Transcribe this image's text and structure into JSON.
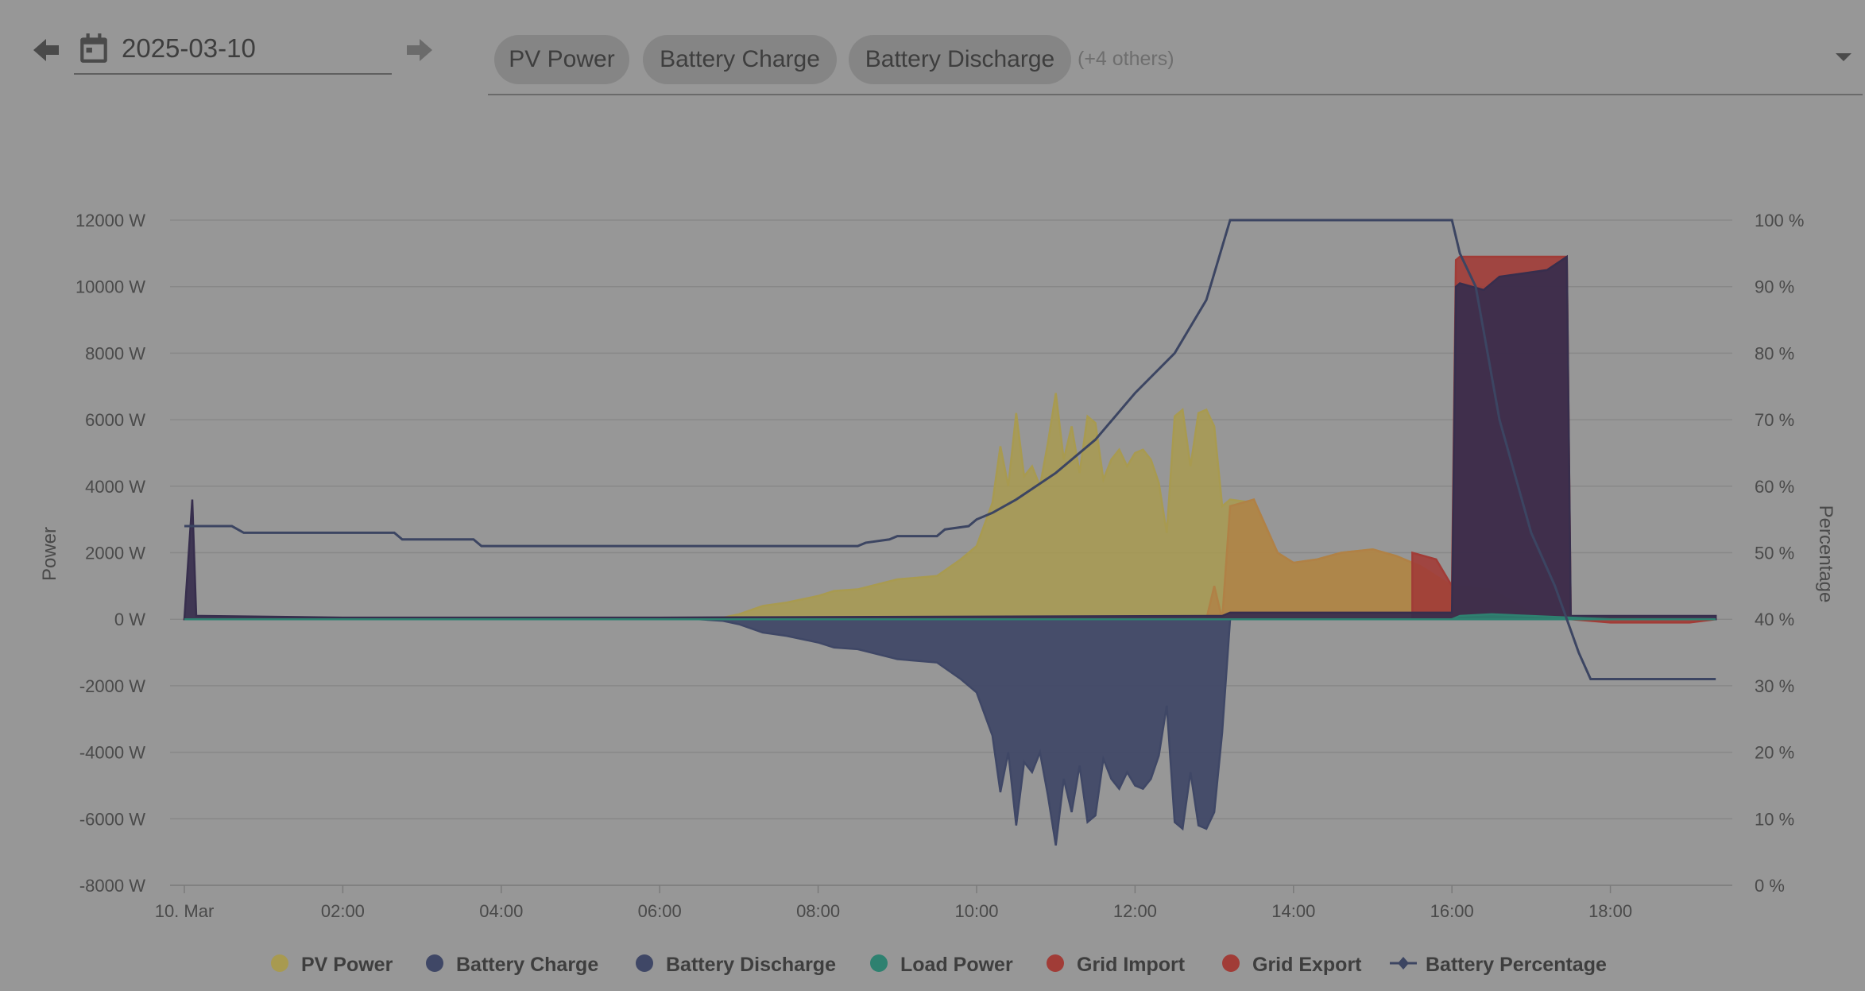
{
  "toolbar": {
    "date": "2025-03-10",
    "selected_series": [
      "PV Power",
      "Battery Charge",
      "Battery Discharge"
    ],
    "others_label": "(+4 others)"
  },
  "colors": {
    "pv": "#a89a50",
    "battery_charge": "#3f4766",
    "battery_discharge": "#372e4d",
    "load": "#2e8170",
    "grid_import": "#a13c37",
    "grid_export": "#b08146",
    "battery_pct": "#3c4562"
  },
  "chart_data": {
    "type": "area",
    "xlabel": "",
    "ylabel": "Power",
    "y2label": "Percentage",
    "x_range_hours": [
      0,
      19.33
    ],
    "x_tick_labels": [
      "10. Mar",
      "02:00",
      "04:00",
      "06:00",
      "08:00",
      "10:00",
      "12:00",
      "14:00",
      "16:00",
      "18:00"
    ],
    "y_tick_labels": [
      "12000 W",
      "10000 W",
      "8000 W",
      "6000 W",
      "4000 W",
      "2000 W",
      "0 W",
      "-2000 W",
      "-4000 W",
      "-6000 W",
      "-8000 W"
    ],
    "y2_tick_labels": [
      "100 %",
      "90 %",
      "80 %",
      "70 %",
      "60 %",
      "50 %",
      "40 %",
      "30 %",
      "20 %",
      "10 %",
      "0 %"
    ],
    "ylim": [
      -8000,
      12000
    ],
    "y2lim": [
      0,
      100
    ],
    "grid": true,
    "legend_position": "bottom",
    "legend": [
      "PV Power",
      "Battery Charge",
      "Battery Discharge",
      "Load Power",
      "Grid Import",
      "Grid Export",
      "Battery Percentage"
    ],
    "series": [
      {
        "name": "PV Power",
        "x": [
          0,
          6.5,
          6.8,
          7,
          7.3,
          7.6,
          8,
          8.2,
          8.5,
          9,
          9.5,
          9.8,
          10,
          10.2,
          10.3,
          10.4,
          10.5,
          10.6,
          10.7,
          10.8,
          10.9,
          11,
          11.1,
          11.2,
          11.3,
          11.4,
          11.5,
          11.6,
          11.7,
          11.8,
          11.9,
          12,
          12.1,
          12.2,
          12.3,
          12.4,
          12.5,
          12.6,
          12.7,
          12.8,
          12.9,
          13,
          13.1,
          13.2,
          13.5,
          13.8,
          14,
          14.3,
          14.6,
          15,
          15.3,
          15.6,
          16,
          16.5,
          17,
          17.5,
          18,
          18.5,
          19.33
        ],
        "y": [
          0,
          0,
          50,
          150,
          400,
          500,
          700,
          850,
          900,
          1200,
          1300,
          1800,
          2200,
          3500,
          5200,
          4000,
          6200,
          4300,
          4600,
          4000,
          5300,
          6800,
          4800,
          5800,
          4400,
          6100,
          5900,
          4200,
          4800,
          5100,
          4600,
          5000,
          5100,
          4800,
          4100,
          2600,
          6100,
          6300,
          4600,
          6200,
          6300,
          5800,
          3400,
          3600,
          3500,
          2000,
          1700,
          1800,
          2000,
          2100,
          1900,
          1600,
          1000,
          900,
          200,
          100,
          50,
          20,
          0
        ]
      },
      {
        "name": "Grid Export",
        "x": [
          12.9,
          13.0,
          13.1,
          13.2,
          13.5,
          13.8,
          14,
          14.3,
          14.6,
          15,
          15.3,
          15.6,
          16,
          16.05,
          17.6,
          18,
          18.5,
          19.33
        ],
        "y": [
          0,
          1000,
          0,
          3400,
          3600,
          2000,
          1700,
          1800,
          2000,
          2100,
          1900,
          1600,
          1000,
          0,
          0,
          0,
          0,
          0
        ]
      },
      {
        "name": "Grid Import",
        "x": [
          15.5,
          15.8,
          16,
          16.05,
          16.1,
          17.4,
          17.45,
          17.5,
          18,
          19,
          19.33
        ],
        "y": [
          2000,
          1800,
          1000,
          10800,
          10900,
          10900,
          10900,
          0,
          -100,
          -100,
          0
        ]
      },
      {
        "name": "Battery Charge",
        "x": [
          0,
          0.1,
          0.15,
          0.2,
          2,
          6,
          13.1,
          13.2,
          16,
          16.05,
          16.1,
          16.4,
          16.6,
          16.9,
          17.2,
          17.45,
          17.5,
          19.33
        ],
        "y": [
          0,
          3600,
          100,
          100,
          50,
          50,
          100,
          200,
          200,
          10000,
          10100,
          9900,
          10300,
          10400,
          10500,
          10900,
          100,
          100
        ]
      },
      {
        "name": "Battery Discharge",
        "x": [
          0,
          6.5,
          6.8,
          7,
          7.3,
          7.6,
          8,
          8.2,
          8.5,
          9,
          9.5,
          9.8,
          10,
          10.2,
          10.3,
          10.4,
          10.5,
          10.6,
          10.7,
          10.8,
          10.9,
          11,
          11.1,
          11.2,
          11.3,
          11.4,
          11.5,
          11.6,
          11.7,
          11.8,
          11.9,
          12,
          12.1,
          12.2,
          12.3,
          12.4,
          12.5,
          12.6,
          12.7,
          12.8,
          12.9,
          13,
          13.1,
          13.2
        ],
        "y": [
          0,
          0,
          -50,
          -150,
          -400,
          -500,
          -700,
          -850,
          -900,
          -1200,
          -1300,
          -1800,
          -2200,
          -3500,
          -5200,
          -4000,
          -6200,
          -4300,
          -4600,
          -4000,
          -5300,
          -6800,
          -4800,
          -5800,
          -4400,
          -6100,
          -5900,
          -4200,
          -4800,
          -5100,
          -4600,
          -5000,
          -5100,
          -4800,
          -4100,
          -2600,
          -6100,
          -6300,
          -4600,
          -6200,
          -6300,
          -5800,
          -3400,
          0
        ]
      },
      {
        "name": "Load Power",
        "x": [
          0,
          16,
          16.1,
          16.5,
          17,
          17.5,
          18,
          19.33
        ],
        "y": [
          0,
          0,
          100,
          150,
          100,
          50,
          0,
          0
        ]
      },
      {
        "name": "Battery Percentage",
        "x": [
          0,
          0.6,
          0.75,
          2.65,
          2.75,
          3.65,
          3.75,
          8.5,
          8.6,
          8.9,
          9,
          9.5,
          9.6,
          9.9,
          10,
          10.2,
          10.5,
          11,
          11.5,
          12,
          12.5,
          12.9,
          13.2,
          16,
          16.1,
          16.3,
          16.6,
          17,
          17.3,
          17.6,
          17.75,
          19.33
        ],
        "y": [
          54,
          54,
          53,
          53,
          52,
          52,
          51,
          51,
          51.5,
          52,
          52.5,
          52.5,
          53.5,
          54,
          55,
          56,
          58,
          62,
          67,
          74,
          80,
          88,
          100,
          100,
          95,
          90,
          70,
          53,
          45,
          35,
          31,
          31
        ]
      }
    ]
  }
}
